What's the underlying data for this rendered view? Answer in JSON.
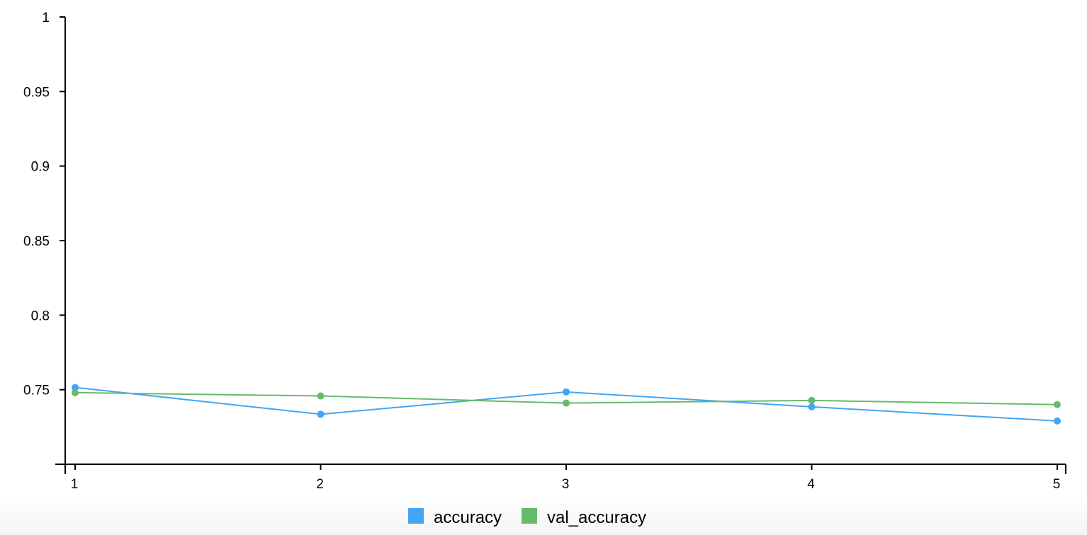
{
  "chart_data": {
    "type": "line",
    "title": "",
    "xlabel": "",
    "ylabel": "",
    "x": [
      1,
      2,
      3,
      4,
      5
    ],
    "xlim": [
      0.96,
      5.04
    ],
    "ylim": [
      0.7,
      1.0
    ],
    "x_ticks": [
      "1",
      "2",
      "3",
      "4",
      "5"
    ],
    "y_ticks": [
      0.75,
      0.8,
      0.85,
      0.9,
      0.95,
      1
    ],
    "y_tick_labels": [
      "0.75",
      "0.8",
      "0.85",
      "0.9",
      "0.95",
      "1"
    ],
    "grid": false,
    "legend_position": "bottom-center",
    "series": [
      {
        "name": "accuracy",
        "color": "#42a5f5",
        "values": [
          0.7515,
          0.7335,
          0.7485,
          0.7385,
          0.729
        ]
      },
      {
        "name": "val_accuracy",
        "color": "#66bb6a",
        "values": [
          0.748,
          0.7458,
          0.741,
          0.7428,
          0.74
        ]
      }
    ]
  },
  "legend": {
    "items": [
      {
        "label": "accuracy",
        "color": "#42a5f5"
      },
      {
        "label": "val_accuracy",
        "color": "#66bb6a"
      }
    ]
  }
}
